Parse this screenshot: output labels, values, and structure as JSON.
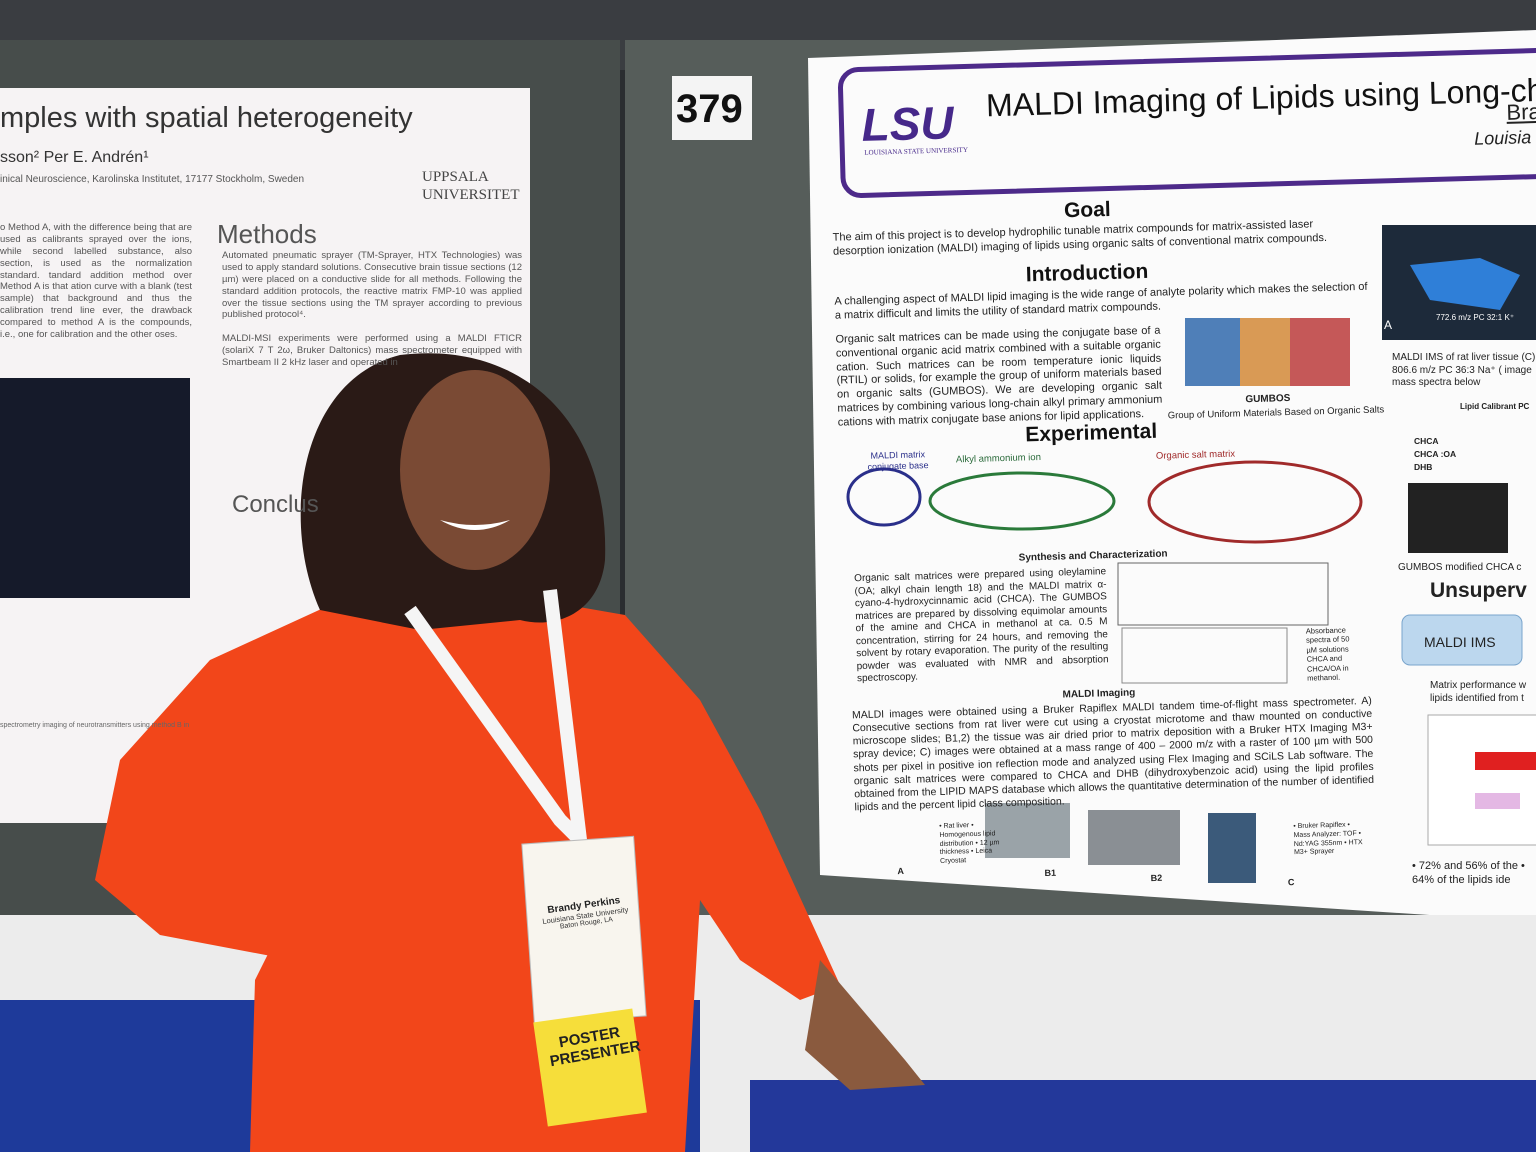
{
  "left_poster": {
    "title": "mples with spatial heterogeneity",
    "authors": "sson² Per E. Andrén¹",
    "affiliation": "inical Neuroscience, Karolinska Institutet, 17177 Stockholm, Sweden",
    "logo_line1": "UPPSALA",
    "logo_line2": "UNIVERSITET",
    "intro_text": "o Method A, with the difference being that are used as calibrants sprayed over the ions, while second labelled substance, also section, is used as the normalization standard. tandard addition method over Method A is that ation curve with a blank (test sample) that background and thus the calibration trend line ever, the drawback compared to method A is the compounds, i.e., one for calibration and the other oses.",
    "methods_heading": "Methods",
    "methods_text": "Automated pneumatic sprayer (TM-Sprayer, HTX Technologies) was used to apply standard solutions. Consecutive brain tissue sections (12 µm) were placed on a conductive slide for all methods. Following the standard addition protocols, the reactive matrix FMP-10 was applied over the tissue sections using the TM sprayer according to previous published protocol⁴.",
    "methods_text2": "MALDI-MSI experiments were performed using a MALDI FTICR (solariX 7 T 2ω, Bruker Daltonics) mass spectrometer equipped with Smartbeam II 2 kHz laser and operated in",
    "conclusion_heading": "Conclus",
    "figure_caption": "spectrometry imaging of neurotransmitters using method B in"
  },
  "board_number": "379",
  "right_poster": {
    "logo": "LSU",
    "logo_sub": "LOUISIANA STATE UNIVERSITY",
    "title": "MALDI Imaging of Lipids using Long-chain",
    "author": "Bra",
    "affiliation": "Louisia",
    "goal_heading": "Goal",
    "goal_text": "The aim of this project is to develop hydrophilic tunable matrix compounds for matrix-assisted laser desorption ionization (MALDI) imaging of lipids using organic salts of conventional matrix compounds.",
    "intro_heading": "Introduction",
    "intro_text": "A challenging aspect of MALDI lipid imaging is the wide range of analyte polarity which makes the selection of a matrix difficult and limits the utility of standard matrix compounds.",
    "intro_text2": "Organic salt matrices can be made using the conjugate base of a conventional organic acid matrix combined with a suitable organic cation. Such matrices can be room temperature ionic liquids (RTIL) or solids, for example the group of uniform materials based on organic salts (GUMBOS). We are developing organic salt matrices by combining various long-chain alkyl primary ammonium cations with matrix conjugate base anions for lipid applications.",
    "gumbos_label": "GUMBOS",
    "gumbos_caption": "Group of Uniform Materials Based on Organic Salts",
    "experimental_heading": "Experimental",
    "label_matrix": "MALDI matrix conjugate base",
    "label_alkyl": "Alkyl ammonium ion",
    "label_salt": "Organic salt matrix",
    "synthesis_heading": "Synthesis and Characterization",
    "synthesis_text": "Organic salt matrices were prepared using oleylamine (OA; alkyl chain length 18) and the MALDI matrix α-cyano-4-hydroxycinnamic acid (CHCA). The GUMBOS matrices are prepared by dissolving equimolar amounts of the amine and CHCA in methanol at ca. 0.5 M concentration, stirring for 24 hours, and removing the solvent by rotary evaporation. The purity of the resulting powder was evaluated with NMR and absorption spectroscopy.",
    "absorbance_caption": "Absorbance spectra of 50 µM solutions CHCA and CHCA/OA in methanol.",
    "imaging_heading": "MALDI Imaging",
    "imaging_text": "MALDI images were obtained using a Bruker Rapiflex MALDI tandem time-of-flight mass spectrometer. A) Consecutive sections from rat liver were cut using a cryostat microtome and thaw mounted on conductive microscope slides; B1,2) the tissue was air dried prior to matrix deposition with a Bruker HTX Imaging M3+ spray device; C) images were obtained at a mass range of 400 – 2000 m/z with a raster of 100 µm with 500 shots per pixel in positive ion reflection mode and analyzed using Flex Imaging and SCiLS Lab software. The organic salt matrices were compared to CHCA and DHB (dihydroxybenzoic acid) using the lipid profiles obtained from the LIPID MAPS database which allows the quantitative determination of the number of identified lipids and the percent lipid class composition.",
    "photo_labels": [
      "A",
      "B1",
      "B2",
      "C"
    ],
    "list_a": "• Rat liver • Homogenous lipid distribution • 12 µm thickness • Leica Cryostat",
    "list_c": "• Bruker Rapiflex • Mass Analyzer: TOF • Nd:YAG 355nm • HTX M3+ Sprayer",
    "image_label": "772.6 m/z PC 32:1 K⁺",
    "image_corner": "A",
    "side_caption": "MALDI IMS of rat liver tissue (C) 806.6 m/z PC 36:3 Na⁺ ( image mass spectra below",
    "table_title": "Lipid Calibrant PC",
    "table_rows": [
      "CHCA",
      "CHCA :OA",
      "DHB"
    ],
    "gumbos_caption2": "GUMBOS modified CHCA c",
    "unsup_heading": "Unsuperv",
    "ims_box": "MALDI IMS",
    "performance_text": "Matrix performance w lipids identified from t",
    "bullets": "• 72% and 56% of the • 64% of the lipids ide"
  },
  "badge": {
    "name": "Brandy Perkins",
    "org": "Louisiana State University",
    "city": "Baton Rouge, LA",
    "ribbon": "POSTER PRESENTER"
  }
}
